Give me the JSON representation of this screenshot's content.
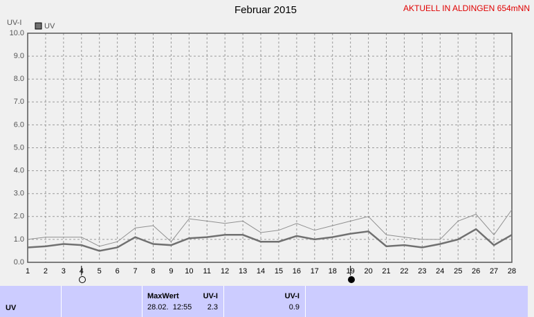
{
  "chart_data": {
    "type": "line",
    "title": "Februar 2015",
    "subtitle": "AKTUELL IN ALDINGEN 654mNN",
    "y_label": "UV-I",
    "x": [
      1,
      2,
      3,
      4,
      5,
      6,
      7,
      8,
      9,
      10,
      11,
      12,
      13,
      14,
      15,
      16,
      17,
      18,
      19,
      20,
      21,
      22,
      23,
      24,
      25,
      26,
      27,
      28
    ],
    "series": [
      {
        "name": "UV",
        "color": "#707070",
        "values": [
          0.65,
          0.7,
          0.8,
          0.75,
          0.5,
          0.65,
          1.1,
          0.8,
          0.75,
          1.05,
          1.1,
          1.2,
          1.2,
          0.9,
          0.9,
          1.15,
          1.0,
          1.1,
          1.25,
          1.35,
          0.7,
          0.75,
          0.65,
          0.8,
          1.0,
          1.45,
          0.75,
          1.2
        ]
      },
      {
        "color": "#909090",
        "values": [
          1.0,
          1.1,
          1.1,
          1.1,
          0.7,
          0.9,
          1.5,
          1.6,
          0.9,
          1.9,
          1.8,
          1.7,
          1.8,
          1.3,
          1.4,
          1.7,
          1.4,
          1.6,
          1.8,
          2.0,
          1.2,
          1.1,
          1.0,
          1.0,
          1.8,
          2.1,
          1.2,
          2.3
        ]
      }
    ],
    "xlim": [
      1,
      28
    ],
    "xticks": [
      1,
      2,
      3,
      4,
      5,
      6,
      7,
      8,
      9,
      10,
      11,
      12,
      13,
      14,
      15,
      16,
      17,
      18,
      19,
      20,
      21,
      22,
      23,
      24,
      25,
      26,
      27,
      28
    ],
    "ylim": [
      0,
      10
    ],
    "yticks": [
      {
        "value": 0,
        "label": "0.0"
      },
      {
        "value": 1,
        "label": "1.0"
      },
      {
        "value": 2,
        "label": "2.0"
      },
      {
        "value": 3,
        "label": "3.0"
      },
      {
        "value": 4,
        "label": "4.0"
      },
      {
        "value": 5,
        "label": "5.0"
      },
      {
        "value": 6,
        "label": "6.0"
      },
      {
        "value": 7,
        "label": "7.0"
      },
      {
        "value": 8,
        "label": "8.0"
      },
      {
        "value": 9,
        "label": "9.0"
      },
      {
        "value": 10,
        "label": "10.0"
      }
    ],
    "grid": true
  },
  "table": {
    "label": "UV",
    "max_header": "MaxWert",
    "max_unit": "UV-I",
    "max_time": "28.02.  12:55",
    "max_value": 2.3,
    "avg_unit": "UV-I",
    "avg_value": 0.9
  }
}
